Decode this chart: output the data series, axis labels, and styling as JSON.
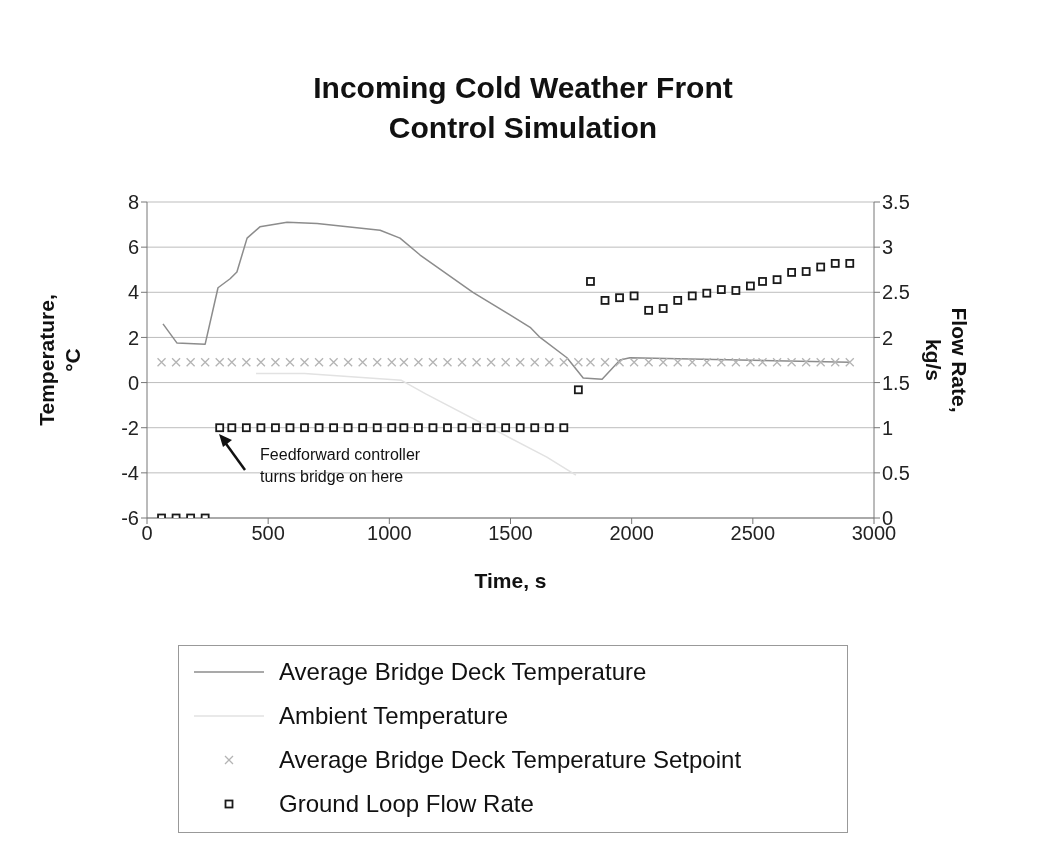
{
  "chart_data": {
    "type": "line",
    "title": "Incoming Cold Weather Front Control Simulation",
    "xlabel": "Time, s",
    "ylabel": "Temperature, °C",
    "y2label": "Flow Rate, kg/s",
    "xlim": [
      0,
      3000
    ],
    "xticks": [
      0,
      500,
      1000,
      1500,
      2000,
      2500,
      3000
    ],
    "ylim": [
      -6,
      8
    ],
    "yticks": [
      -6,
      -4,
      -2,
      0,
      2,
      4,
      6,
      8
    ],
    "y2lim": [
      0,
      3.5
    ],
    "y2ticks": [
      0,
      0.5,
      1,
      1.5,
      2,
      2.5,
      3,
      3.5
    ],
    "grid": "y",
    "legend": "bottom",
    "annotations": [
      "Feedforward controller turns bridge on here"
    ],
    "series": [
      {
        "name": "Average Bridge Deck Temperature",
        "color": "#8c8c8c",
        "marker": "none",
        "x": [
          66,
          124,
          240,
          293,
          343,
          371,
          413,
          466,
          578,
          702,
          962,
          1044,
          1127,
          1345,
          1581,
          1622,
          1733,
          1800,
          1878,
          1952,
          1993,
          2900
        ],
        "values": [
          2.6,
          1.75,
          1.7,
          4.2,
          4.6,
          4.9,
          6.4,
          6.9,
          7.1,
          7.05,
          6.75,
          6.4,
          5.65,
          4.0,
          2.45,
          2.0,
          1.1,
          0.2,
          0.15,
          1.0,
          1.1,
          0.9
        ]
      },
      {
        "name": "Ambient Temperature",
        "color": "#e2e2e2",
        "marker": "none",
        "x": [
          450,
          650,
          1050,
          1150,
          1650,
          1770
        ],
        "values": [
          0.4,
          0.4,
          0.1,
          -0.5,
          -3.3,
          -4.1
        ]
      },
      {
        "name": "Average Bridge Deck Temperature Setpoint",
        "type": "scatter",
        "color": "#b4b4b4",
        "marker": "cross",
        "x": [
          60,
          120,
          180,
          240,
          300,
          350,
          410,
          470,
          530,
          590,
          650,
          710,
          770,
          830,
          890,
          950,
          1010,
          1060,
          1120,
          1180,
          1240,
          1300,
          1360,
          1420,
          1480,
          1540,
          1600,
          1660,
          1720,
          1780,
          1830,
          1890,
          1950,
          2010,
          2070,
          2130,
          2190,
          2250,
          2310,
          2370,
          2430,
          2490,
          2540,
          2600,
          2660,
          2720,
          2780,
          2840,
          2900
        ],
        "values": [
          0.9,
          0.9,
          0.9,
          0.9,
          0.9,
          0.9,
          0.9,
          0.9,
          0.9,
          0.9,
          0.9,
          0.9,
          0.9,
          0.9,
          0.9,
          0.9,
          0.9,
          0.9,
          0.9,
          0.9,
          0.9,
          0.9,
          0.9,
          0.9,
          0.9,
          0.9,
          0.9,
          0.9,
          0.9,
          0.9,
          0.9,
          0.9,
          0.9,
          0.9,
          0.9,
          0.9,
          0.9,
          0.9,
          0.9,
          0.9,
          0.9,
          0.9,
          0.9,
          0.9,
          0.9,
          0.9,
          0.9,
          0.9,
          0.9
        ]
      },
      {
        "name": "Ground Loop Flow Rate",
        "type": "scatter",
        "axis": "y2",
        "color": "#1a1a1a",
        "marker": "square",
        "x": [
          60,
          120,
          180,
          240,
          300,
          350,
          410,
          470,
          530,
          590,
          650,
          710,
          770,
          830,
          890,
          950,
          1010,
          1060,
          1120,
          1180,
          1240,
          1300,
          1360,
          1420,
          1480,
          1540,
          1600,
          1660,
          1720,
          1780,
          1830,
          1890,
          1950,
          2010,
          2070,
          2130,
          2190,
          2250,
          2310,
          2370,
          2430,
          2490,
          2540,
          2600,
          2660,
          2720,
          2780,
          2840,
          2900
        ],
        "values": [
          0,
          0,
          0,
          0,
          1,
          1,
          1,
          1,
          1,
          1,
          1,
          1,
          1,
          1,
          1,
          1,
          1,
          1,
          1,
          1,
          1,
          1,
          1,
          1,
          1,
          1,
          1,
          1,
          1,
          1.42,
          2.62,
          2.41,
          2.44,
          2.46,
          2.3,
          2.32,
          2.41,
          2.46,
          2.49,
          2.53,
          2.52,
          2.57,
          2.62,
          2.64,
          2.72,
          2.73,
          2.78,
          2.82,
          2.82
        ]
      }
    ]
  }
}
